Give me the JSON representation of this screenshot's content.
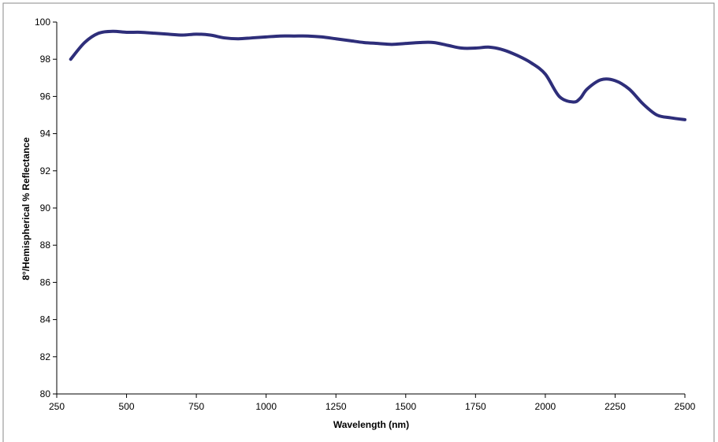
{
  "chart_data": {
    "type": "line",
    "xlabel": "Wavelength (nm)",
    "ylabel": "8°/Hemispherical % Reflectance",
    "xlim": [
      250,
      2500
    ],
    "ylim": [
      80,
      100
    ],
    "x_ticks": [
      250,
      500,
      750,
      1000,
      1250,
      1500,
      1750,
      2000,
      2250,
      2500
    ],
    "y_ticks": [
      80,
      82,
      84,
      86,
      88,
      90,
      92,
      94,
      96,
      98,
      100
    ],
    "grid": false,
    "legend": "none",
    "colors": {
      "line": "#2e2e7a",
      "axis": "#000000",
      "frame": "#888888"
    },
    "series": [
      {
        "x": [
          300,
          350,
          400,
          450,
          500,
          550,
          600,
          650,
          700,
          750,
          800,
          850,
          900,
          950,
          1000,
          1050,
          1100,
          1150,
          1200,
          1250,
          1300,
          1350,
          1400,
          1450,
          1500,
          1550,
          1600,
          1650,
          1700,
          1750,
          1800,
          1850,
          1900,
          1950,
          2000,
          2050,
          2100,
          2125,
          2150,
          2200,
          2250,
          2300,
          2350,
          2400,
          2450,
          2500
        ],
        "y": [
          98.0,
          98.9,
          99.4,
          99.5,
          99.45,
          99.45,
          99.4,
          99.35,
          99.3,
          99.35,
          99.3,
          99.15,
          99.1,
          99.15,
          99.2,
          99.25,
          99.25,
          99.25,
          99.2,
          99.1,
          99.0,
          98.9,
          98.85,
          98.8,
          98.85,
          98.9,
          98.9,
          98.75,
          98.6,
          98.6,
          98.65,
          98.5,
          98.2,
          97.8,
          97.2,
          96.0,
          95.7,
          95.9,
          96.4,
          96.9,
          96.85,
          96.4,
          95.6,
          95.0,
          94.85,
          94.75
        ]
      }
    ]
  }
}
